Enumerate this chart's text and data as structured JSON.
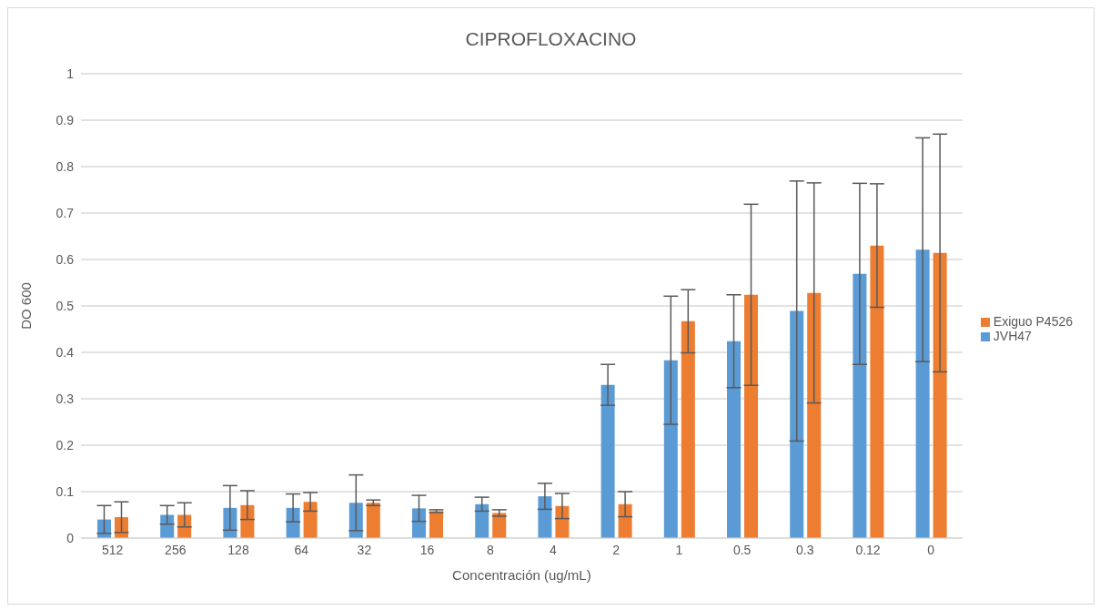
{
  "chart_data": {
    "type": "bar",
    "title": "CIPROFLOXACINO",
    "xlabel": "Concentración (ug/mL)",
    "ylabel": "DO 600",
    "categories": [
      "512",
      "256",
      "128",
      "64",
      "32",
      "16",
      "8",
      "4",
      "2",
      "1",
      "0.5",
      "0.3",
      "0.12",
      "0"
    ],
    "series": [
      {
        "name": "JVH47",
        "color": "#5b9bd5",
        "values": [
          0.04,
          0.05,
          0.065,
          0.065,
          0.076,
          0.064,
          0.073,
          0.09,
          0.33,
          0.383,
          0.424,
          0.489,
          0.569,
          0.621
        ],
        "errors": [
          0.03,
          0.02,
          0.048,
          0.03,
          0.06,
          0.028,
          0.015,
          0.028,
          0.044,
          0.138,
          0.1,
          0.28,
          0.195,
          0.241
        ]
      },
      {
        "name": "Exiguo P4526",
        "color": "#ed7d31",
        "values": [
          0.045,
          0.05,
          0.071,
          0.078,
          0.076,
          0.058,
          0.054,
          0.069,
          0.073,
          0.467,
          0.524,
          0.528,
          0.63,
          0.614
        ],
        "errors": [
          0.033,
          0.026,
          0.031,
          0.02,
          0.006,
          0.003,
          0.007,
          0.027,
          0.027,
          0.068,
          0.195,
          0.237,
          0.133,
          0.256
        ]
      }
    ],
    "ylim": [
      0,
      1
    ],
    "yticks": [
      0,
      0.1,
      0.2,
      0.3,
      0.4,
      0.5,
      0.6,
      0.7,
      0.8,
      0.9,
      1
    ],
    "grid": "y",
    "legend": "right"
  }
}
